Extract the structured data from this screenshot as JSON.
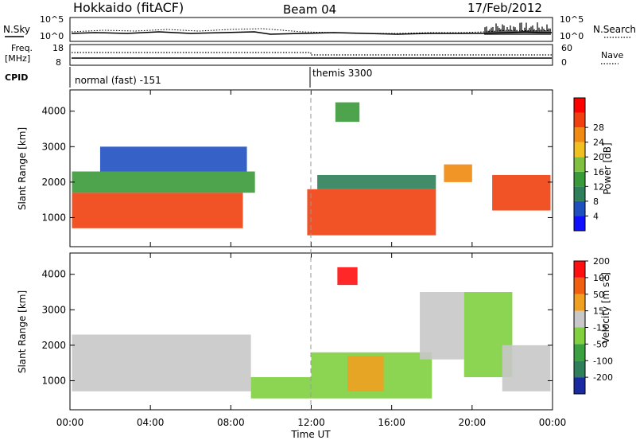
{
  "header": {
    "site": "Hokkaido (fitACF)",
    "beam": "Beam 04",
    "date": "17/Feb/2012"
  },
  "strip_labels": {
    "nsky": "N.Sky",
    "nsearch": "N.Search",
    "freq_line1": "Freq.",
    "freq_line2": "[MHz]",
    "nave": "Nave",
    "cpid": "CPID",
    "cpid_first": "normal (fast) -151",
    "cpid_second": "themis 3300"
  },
  "chart_data": [
    {
      "type": "line",
      "name": "noise-strip",
      "left_ticks": [
        "10^5",
        "10^0"
      ],
      "right_ticks": [
        "10^5",
        "10^0"
      ],
      "ylabel_left": "N.Sky",
      "ylabel_right": "N.Search"
    },
    {
      "type": "line",
      "name": "freq-nave-strip",
      "left_ticks": [
        "18",
        "8"
      ],
      "right_ticks": [
        "60",
        "0"
      ],
      "ylabel_left": "Freq. [MHz]",
      "ylabel_right": "Nave",
      "freq_mhz": 10.8,
      "nave": [
        [
          0,
          46
        ],
        [
          12,
          46
        ],
        [
          12,
          52
        ],
        [
          24,
          52
        ]
      ]
    },
    {
      "type": "heatmap",
      "name": "power-panel",
      "ylabel": "Slant Range [km]",
      "yticks": [
        1000,
        2000,
        3000,
        4000
      ],
      "ylim": [
        180,
        4600
      ],
      "xlim": [
        0,
        24
      ],
      "xlabel": "Time UT",
      "xtick_labels": [
        "00:00",
        "04:00",
        "08:00",
        "12:00",
        "16:00",
        "20:00",
        "00:00"
      ],
      "xticks": [
        0,
        4,
        8,
        12,
        16,
        20,
        24
      ],
      "colorbar_label": "Power [dB]",
      "colorbar_ticks": [
        "4",
        "8",
        "12",
        "16",
        "20",
        "24",
        "28"
      ],
      "colorbar_colors": [
        "#1010ff",
        "#2050c0",
        "#2e7f5a",
        "#3a9a3a",
        "#7fc040",
        "#f0c020",
        "#f08a10",
        "#f04010",
        "#ff0000"
      ],
      "regions": [
        {
          "t0": 0.1,
          "t1": 8.6,
          "r0": 700,
          "r1": 1700,
          "color": "#f04010"
        },
        {
          "t0": 0.1,
          "t1": 9.2,
          "r0": 1700,
          "r1": 2300,
          "color": "#3a9a3a"
        },
        {
          "t0": 1.5,
          "t1": 8.8,
          "r0": 2300,
          "r1": 3000,
          "color": "#2050c0"
        },
        {
          "t0": 11.8,
          "t1": 18.2,
          "r0": 500,
          "r1": 1800,
          "color": "#f04010"
        },
        {
          "t0": 12.3,
          "t1": 18.2,
          "r0": 1800,
          "r1": 2200,
          "color": "#2e7f5a"
        },
        {
          "t0": 13.2,
          "t1": 14.4,
          "r0": 3700,
          "r1": 4250,
          "color": "#3a9a3a"
        },
        {
          "t0": 18.6,
          "t1": 20.0,
          "r0": 2000,
          "r1": 2500,
          "color": "#f08a10"
        },
        {
          "t0": 21.0,
          "t1": 23.9,
          "r0": 1200,
          "r1": 2200,
          "color": "#f04010"
        }
      ]
    },
    {
      "type": "heatmap",
      "name": "velocity-panel",
      "ylabel": "Slant Range [km]",
      "yticks": [
        1000,
        2000,
        3000,
        4000
      ],
      "ylim": [
        180,
        4600
      ],
      "xlim": [
        0,
        24
      ],
      "xlabel": "Time UT",
      "xtick_labels": [
        "00:00",
        "04:00",
        "08:00",
        "12:00",
        "16:00",
        "20:00",
        "00:00"
      ],
      "xticks": [
        0,
        4,
        8,
        12,
        16,
        20,
        24
      ],
      "colorbar_label": "Velocity [m s",
      "colorbar_label_sup": "-1",
      "colorbar_label_end": "]",
      "colorbar_ticks": [
        "200",
        "100",
        "50",
        "15",
        "-15",
        "-50",
        "-100",
        "-200"
      ],
      "colorbar_colors": [
        "#1a2aa0",
        "#2e7f5a",
        "#3aa040",
        "#80d040",
        "#c8c8c8",
        "#f0a020",
        "#f06010",
        "#ff1010"
      ],
      "regions": [
        {
          "t0": 0.1,
          "t1": 9.0,
          "r0": 700,
          "r1": 2300,
          "color": "#c8c8c8"
        },
        {
          "t0": 9.0,
          "t1": 12.0,
          "r0": 500,
          "r1": 1100,
          "color": "#80d040"
        },
        {
          "t0": 12.0,
          "t1": 18.0,
          "r0": 500,
          "r1": 1800,
          "color": "#80d040"
        },
        {
          "t0": 13.8,
          "t1": 15.6,
          "r0": 700,
          "r1": 1700,
          "color": "#f0a020"
        },
        {
          "t0": 13.3,
          "t1": 14.3,
          "r0": 3700,
          "r1": 4200,
          "color": "#ff1010"
        },
        {
          "t0": 17.4,
          "t1": 19.6,
          "r0": 1600,
          "r1": 3500,
          "color": "#c8c8c8"
        },
        {
          "t0": 19.6,
          "t1": 22.0,
          "r0": 1100,
          "r1": 3500,
          "color": "#80d040"
        },
        {
          "t0": 21.5,
          "t1": 23.9,
          "r0": 700,
          "r1": 2000,
          "color": "#c8c8c8"
        }
      ]
    }
  ]
}
